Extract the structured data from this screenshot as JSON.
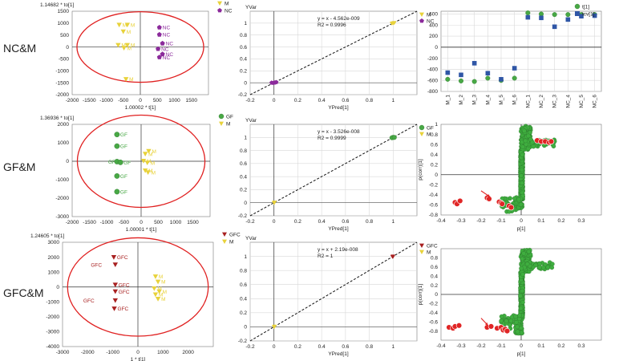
{
  "row_labels": [
    "NC&M",
    "GF&M",
    "GFC&M"
  ],
  "colors": {
    "M": "#e8d23a",
    "NC": "#8b2a9b",
    "GF": "#48a845",
    "GFC": "#a82020",
    "ellipse": "#e02020",
    "t1": "#48a845",
    "tcv1": "#2f56a6",
    "s_green": "#3fae3f",
    "s_red": "#e02525",
    "arrow": "#e02525"
  },
  "chart_data": [
    {
      "id": "nc-score",
      "type": "scatter",
      "subtype": "score-plot",
      "ytitle": "1.14682 * to[1]",
      "xlabel": "1.00002 * t[1]",
      "xlim": [
        -2000,
        2000
      ],
      "ylim": [
        -2000,
        1500
      ],
      "xticks": [
        -2000,
        -1500,
        -1000,
        -500,
        0,
        500,
        1000,
        1500
      ],
      "yticks": [
        -2000,
        -1500,
        -1000,
        -500,
        0,
        500,
        1000,
        1500
      ],
      "ellipse": {
        "cx": 0,
        "cy": 0,
        "rx": 1860,
        "ry": 1480
      },
      "legend": [
        "M",
        "NC"
      ],
      "series": [
        {
          "name": "M",
          "marker": "tri",
          "color": "#e8d23a",
          "points": [
            [
              -620,
              930
            ],
            [
              -380,
              930
            ],
            [
              -500,
              650
            ],
            [
              -650,
              80
            ],
            [
              -480,
              -40
            ],
            [
              -380,
              80
            ],
            [
              -420,
              -1350
            ]
          ]
        },
        {
          "name": "NC",
          "marker": "pent",
          "color": "#8b2a9b",
          "points": [
            [
              560,
              820
            ],
            [
              560,
              520
            ],
            [
              650,
              150
            ],
            [
              520,
              -80
            ],
            [
              650,
              -300
            ],
            [
              560,
              -430
            ]
          ]
        }
      ],
      "labels": [
        {
          "x": -620,
          "y": 930,
          "t": "M",
          "c": "#e8d23a"
        },
        {
          "x": -380,
          "y": 930,
          "t": "M",
          "c": "#e8d23a"
        },
        {
          "x": -500,
          "y": 650,
          "t": "M",
          "c": "#e8d23a"
        },
        {
          "x": -650,
          "y": 80,
          "t": "M",
          "c": "#e8d23a"
        },
        {
          "x": -480,
          "y": -40,
          "t": "M",
          "c": "#e8d23a"
        },
        {
          "x": -380,
          "y": 80,
          "t": "M",
          "c": "#e8d23a"
        },
        {
          "x": -420,
          "y": -1350,
          "t": "M",
          "c": "#e8d23a"
        },
        {
          "x": 560,
          "y": 820,
          "t": "NC",
          "c": "#8b2a9b"
        },
        {
          "x": 560,
          "y": 520,
          "t": "NC",
          "c": "#8b2a9b"
        },
        {
          "x": 650,
          "y": 150,
          "t": "NC",
          "c": "#8b2a9b"
        },
        {
          "x": 520,
          "y": -80,
          "t": "NC",
          "c": "#8b2a9b"
        },
        {
          "x": 650,
          "y": -300,
          "t": "NC",
          "c": "#8b2a9b"
        },
        {
          "x": 560,
          "y": -430,
          "t": "NC",
          "c": "#8b2a9b"
        }
      ]
    },
    {
      "id": "nc-val",
      "type": "scatter",
      "subtype": "validation",
      "ytitle": "YVar",
      "xlabel": "YPred[1]",
      "xlim": [
        -0.2,
        1.2
      ],
      "ylim": [
        -0.2,
        1.2
      ],
      "xticks": [
        -0.2,
        0,
        0.2,
        0.4,
        0.6,
        0.8,
        1
      ],
      "yticks": [
        -0.2,
        0,
        0.2,
        0.4,
        0.6,
        0.8,
        1
      ],
      "annotation": [
        "y = x - 4.562e-009",
        "R2 = 0.9996"
      ],
      "legend": [
        "M",
        "NC"
      ],
      "series": [
        {
          "name": "M",
          "marker": "tri",
          "color": "#e8d23a",
          "points": [
            [
              1,
              1
            ],
            [
              0.99,
              0.995
            ],
            [
              1.01,
              1.005
            ]
          ]
        },
        {
          "name": "NC",
          "marker": "pent",
          "color": "#8b2a9b",
          "points": [
            [
              0,
              0
            ],
            [
              0.01,
              0.005
            ],
            [
              -0.01,
              -0.005
            ],
            [
              0.02,
              0.01
            ],
            [
              0.005,
              0.0
            ],
            [
              -0.02,
              0.0
            ]
          ]
        }
      ]
    },
    {
      "id": "nc-bar",
      "type": "scatter",
      "subtype": "sample-plot",
      "categories": [
        "M_1",
        "M_2",
        "M_3",
        "M_4",
        "M_5",
        "M_6",
        "NC_1",
        "NC_2",
        "NC_3",
        "NC_4",
        "NC_5",
        "NC_6"
      ],
      "ylim": [
        -800,
        650
      ],
      "yticks": [
        -800,
        -600,
        -400,
        -200,
        0,
        200,
        400,
        600
      ],
      "series": [
        {
          "name": "t[1]",
          "marker": "circle",
          "color": "#48a845",
          "values": [
            -580,
            -610,
            -620,
            -560,
            -600,
            -560,
            620,
            600,
            590,
            590,
            590,
            590
          ]
        },
        {
          "name": "tcv[1]",
          "marker": "square",
          "color": "#2f56a6",
          "values": [
            -460,
            -500,
            -290,
            -470,
            -580,
            -380,
            540,
            530,
            370,
            500,
            560,
            570
          ]
        }
      ]
    },
    {
      "id": "gf-score",
      "type": "scatter",
      "subtype": "score-plot",
      "ytitle": "1.36936 * to[1]",
      "xlabel": "1.00001 * t[1]",
      "xlim": [
        -2000,
        2000
      ],
      "ylim": [
        -3000,
        2000
      ],
      "xticks": [
        -2000,
        -1500,
        -1000,
        -500,
        0,
        500,
        1000,
        1500
      ],
      "yticks": [
        -3000,
        -2000,
        -1000,
        0,
        1000,
        2000
      ],
      "ellipse": {
        "cx": 0,
        "cy": 0,
        "rx": 1850,
        "ry": 2500
      },
      "legend": [
        "GF",
        "M"
      ],
      "series": [
        {
          "name": "GF",
          "marker": "circle",
          "color": "#48a845",
          "points": [
            [
              -700,
              1450
            ],
            [
              -700,
              820
            ],
            [
              -700,
              -20
            ],
            [
              -600,
              -60
            ],
            [
              -700,
              -800
            ],
            [
              -700,
              -1650
            ]
          ]
        },
        {
          "name": "M",
          "marker": "tri",
          "color": "#e8d23a",
          "points": [
            [
              120,
              400
            ],
            [
              220,
              550
            ],
            [
              70,
              20
            ],
            [
              180,
              -80
            ],
            [
              120,
              -500
            ],
            [
              200,
              -600
            ]
          ]
        }
      ],
      "labels": [
        {
          "x": -700,
          "y": 1450,
          "t": "GF",
          "c": "#48a845"
        },
        {
          "x": -700,
          "y": 820,
          "t": "GF",
          "c": "#48a845"
        },
        {
          "x": -1050,
          "y": -20,
          "t": "GF",
          "c": "#48a845"
        },
        {
          "x": -600,
          "y": -60,
          "t": "GF",
          "c": "#48a845"
        },
        {
          "x": -700,
          "y": -800,
          "t": "GF",
          "c": "#48a845"
        },
        {
          "x": -700,
          "y": -1650,
          "t": "GF",
          "c": "#48a845"
        },
        {
          "x": 120,
          "y": 400,
          "t": "M",
          "c": "#e8d23a"
        },
        {
          "x": 220,
          "y": 550,
          "t": "M",
          "c": "#e8d23a"
        },
        {
          "x": 70,
          "y": 20,
          "t": "M",
          "c": "#e8d23a"
        },
        {
          "x": 180,
          "y": -80,
          "t": "M",
          "c": "#e8d23a"
        },
        {
          "x": 120,
          "y": -500,
          "t": "M",
          "c": "#e8d23a"
        },
        {
          "x": 200,
          "y": -600,
          "t": "M",
          "c": "#e8d23a"
        }
      ]
    },
    {
      "id": "gf-val",
      "type": "scatter",
      "subtype": "validation",
      "ytitle": "YVar",
      "xlabel": "YPred[1]",
      "xlim": [
        -0.2,
        1.2
      ],
      "ylim": [
        -0.2,
        1.2
      ],
      "xticks": [
        -0.2,
        0,
        0.2,
        0.4,
        0.6,
        0.8,
        1
      ],
      "yticks": [
        -0.2,
        0,
        0.2,
        0.4,
        0.6,
        0.8,
        1
      ],
      "annotation": [
        "y = x - 3.526e-008",
        "R2 = 0.9999"
      ],
      "legend": [
        "GF",
        "M"
      ],
      "series": [
        {
          "name": "GF",
          "marker": "circle",
          "color": "#48a845",
          "points": [
            [
              1,
              1
            ],
            [
              0.99,
              0.995
            ],
            [
              1.01,
              1.0
            ]
          ]
        },
        {
          "name": "M",
          "marker": "tri",
          "color": "#e8d23a",
          "points": [
            [
              0,
              0
            ],
            [
              0.005,
              0.005
            ]
          ]
        }
      ]
    },
    {
      "id": "gf-splot",
      "type": "scatter",
      "subtype": "s-plot",
      "xlabel": "p[1]",
      "ylabel": "p(corr)[1]",
      "xlim": [
        -0.4,
        0.4
      ],
      "ylim": [
        -0.8,
        1.0
      ],
      "xticks": [
        -0.4,
        -0.3,
        -0.2,
        -0.1,
        0,
        0.1,
        0.2,
        0.3
      ],
      "yticks": [
        -0.8,
        -0.6,
        -0.4,
        -0.2,
        0,
        0.2,
        0.4,
        0.6,
        0.8,
        1
      ],
      "red_points": [
        [
          -0.33,
          -0.55
        ],
        [
          -0.32,
          -0.58
        ],
        [
          -0.305,
          -0.52
        ],
        [
          -0.17,
          -0.46
        ],
        [
          -0.16,
          -0.48
        ],
        [
          -0.11,
          -0.54
        ],
        [
          -0.1,
          -0.56
        ],
        [
          -0.095,
          -0.58
        ],
        [
          -0.06,
          -0.62
        ],
        [
          -0.05,
          -0.65
        ],
        [
          0.08,
          0.68
        ],
        [
          0.1,
          0.66
        ],
        [
          0.12,
          0.66
        ],
        [
          0.14,
          0.64
        ],
        [
          0.15,
          0.66
        ]
      ],
      "arrow": {
        "from": [
          -0.2,
          -0.32
        ],
        "to": [
          -0.155,
          -0.44
        ]
      }
    },
    {
      "id": "gfc-score",
      "type": "scatter",
      "subtype": "score-plot",
      "ytitle": "1.24605 * to[1]",
      "xlabel": "1 * t[1]",
      "xlim": [
        -3000,
        3000
      ],
      "ylim": [
        -4000,
        3000
      ],
      "xticks": [
        -3000,
        -2000,
        -1000,
        0,
        1000,
        2000
      ],
      "yticks": [
        -4000,
        -3000,
        -2000,
        -1000,
        0,
        1000,
        2000,
        3000
      ],
      "ellipse": {
        "cx": 0,
        "cy": 0,
        "rx": 2800,
        "ry": 3300
      },
      "legend": [
        "GFC",
        "M"
      ],
      "series": [
        {
          "name": "GFC",
          "marker": "tri",
          "color": "#a82020",
          "points": [
            [
              -960,
              2000
            ],
            [
              -900,
              1500
            ],
            [
              -900,
              150
            ],
            [
              -900,
              -300
            ],
            [
              -900,
              -900
            ],
            [
              -940,
              -1450
            ]
          ]
        },
        {
          "name": "M",
          "marker": "tri",
          "color": "#e8d23a",
          "points": [
            [
              700,
              700
            ],
            [
              800,
              350
            ],
            [
              650,
              -100
            ],
            [
              850,
              -300
            ],
            [
              700,
              -500
            ],
            [
              800,
              -800
            ]
          ]
        }
      ],
      "labels": [
        {
          "x": -960,
          "y": 2000,
          "t": "GFC",
          "c": "#a82020"
        },
        {
          "x": -2000,
          "y": 1500,
          "t": "GFC",
          "c": "#a82020"
        },
        {
          "x": -900,
          "y": 150,
          "t": "GFC",
          "c": "#a82020"
        },
        {
          "x": -900,
          "y": -300,
          "t": "GFC",
          "c": "#a82020"
        },
        {
          "x": -2300,
          "y": -900,
          "t": "GFC",
          "c": "#a82020"
        },
        {
          "x": -940,
          "y": -1450,
          "t": "GFC",
          "c": "#a82020"
        },
        {
          "x": 700,
          "y": 700,
          "t": "M",
          "c": "#e8d23a"
        },
        {
          "x": 800,
          "y": 350,
          "t": "M",
          "c": "#e8d23a"
        },
        {
          "x": 650,
          "y": -100,
          "t": "M",
          "c": "#e8d23a"
        },
        {
          "x": 850,
          "y": -300,
          "t": "M",
          "c": "#e8d23a"
        },
        {
          "x": 700,
          "y": -500,
          "t": "M",
          "c": "#e8d23a"
        },
        {
          "x": 800,
          "y": -800,
          "t": "M",
          "c": "#e8d23a"
        }
      ]
    },
    {
      "id": "gfc-val",
      "type": "scatter",
      "subtype": "validation",
      "ytitle": "YVar",
      "xlabel": "YPred[1]",
      "xlim": [
        -0.2,
        1.2
      ],
      "ylim": [
        -0.2,
        1.2
      ],
      "xticks": [
        -0.2,
        0,
        0.2,
        0.4,
        0.6,
        0.8,
        1
      ],
      "yticks": [
        -0.2,
        0,
        0.2,
        0.4,
        0.6,
        0.8,
        1
      ],
      "annotation": [
        "y = x + 2.19e-008",
        "R2 = 1"
      ],
      "legend": [
        "GFC",
        "M"
      ],
      "series": [
        {
          "name": "GFC",
          "marker": "tri",
          "color": "#a82020",
          "points": [
            [
              1,
              1
            ],
            [
              0.995,
              0.995
            ]
          ]
        },
        {
          "name": "M",
          "marker": "tri",
          "color": "#e8d23a",
          "points": [
            [
              0,
              0
            ],
            [
              0.005,
              0.005
            ]
          ]
        }
      ]
    },
    {
      "id": "gfc-splot",
      "type": "scatter",
      "subtype": "s-plot",
      "xlabel": "p[1]",
      "ylabel": "p(corr)[1]",
      "xlim": [
        -0.4,
        0.4
      ],
      "ylim": [
        -1.0,
        1.0
      ],
      "xticks": [
        -0.4,
        -0.3,
        -0.2,
        -0.1,
        0,
        0.1,
        0.2,
        0.3
      ],
      "yticks": [
        -0.8,
        -0.6,
        -0.4,
        -0.2,
        0,
        0.2,
        0.4,
        0.6,
        0.8
      ],
      "red_points": [
        [
          -0.36,
          -0.72
        ],
        [
          -0.34,
          -0.74
        ],
        [
          -0.33,
          -0.7
        ],
        [
          -0.31,
          -0.68
        ],
        [
          -0.17,
          -0.72
        ],
        [
          -0.15,
          -0.7
        ],
        [
          -0.12,
          -0.74
        ],
        [
          -0.1,
          -0.72
        ],
        [
          -0.09,
          -0.78
        ],
        [
          -0.08,
          -0.76
        ],
        [
          -0.07,
          -0.8
        ]
      ],
      "arrow": {
        "from": [
          -0.2,
          -0.52
        ],
        "to": [
          -0.165,
          -0.68
        ]
      }
    }
  ]
}
